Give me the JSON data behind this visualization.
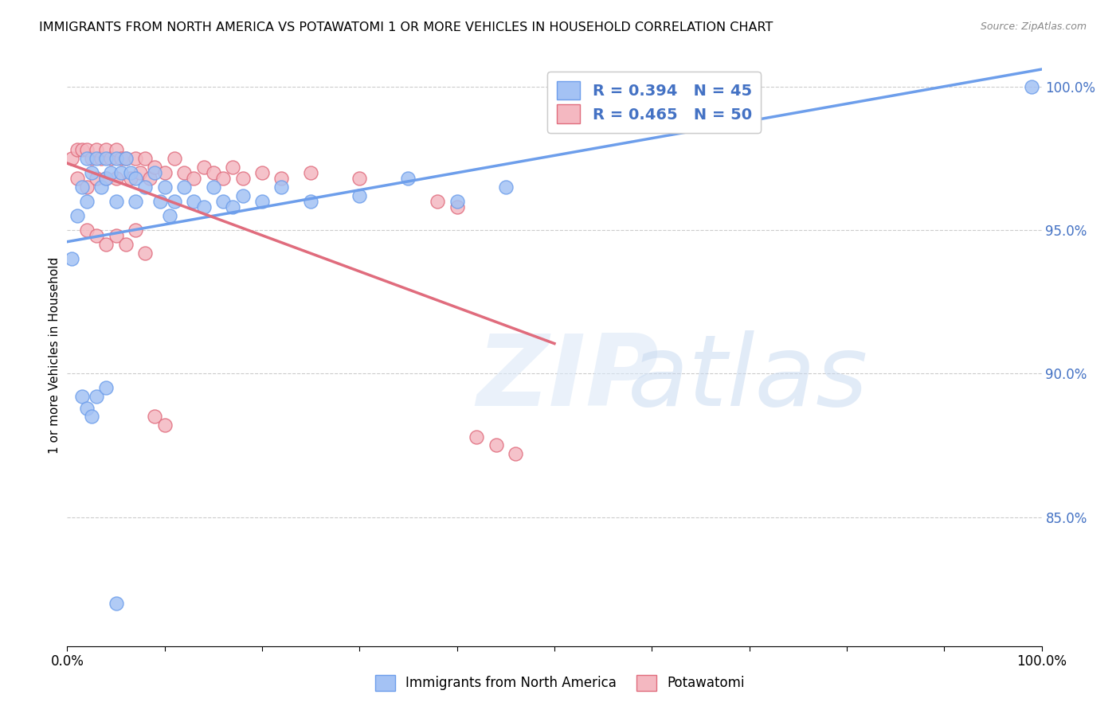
{
  "title": "IMMIGRANTS FROM NORTH AMERICA VS POTAWATOMI 1 OR MORE VEHICLES IN HOUSEHOLD CORRELATION CHART",
  "source": "Source: ZipAtlas.com",
  "ylabel": "1 or more Vehicles in Household",
  "blue_color": "#a4c2f4",
  "pink_color": "#f4b8c1",
  "blue_edge_color": "#6d9eeb",
  "pink_edge_color": "#e06c7d",
  "blue_line_color": "#6d9eeb",
  "pink_line_color": "#e06c7d",
  "legend_text_color": "#4472c4",
  "R_blue": 0.394,
  "N_blue": 45,
  "R_pink": 0.465,
  "N_pink": 50,
  "xlim": [
    0.0,
    1.0
  ],
  "ylim": [
    0.805,
    1.008
  ],
  "yticks": [
    0.85,
    0.9,
    0.95,
    1.0
  ],
  "ytick_labels": [
    "85.0%",
    "90.0%",
    "95.0%",
    "100.0%"
  ],
  "blue_x": [
    0.005,
    0.01,
    0.015,
    0.02,
    0.02,
    0.025,
    0.03,
    0.035,
    0.04,
    0.04,
    0.045,
    0.05,
    0.05,
    0.055,
    0.06,
    0.065,
    0.07,
    0.07,
    0.08,
    0.09,
    0.095,
    0.1,
    0.105,
    0.11,
    0.12,
    0.13,
    0.14,
    0.15,
    0.16,
    0.17,
    0.18,
    0.2,
    0.22,
    0.25,
    0.3,
    0.35,
    0.4,
    0.45,
    0.015,
    0.02,
    0.025,
    0.03,
    0.04,
    0.05,
    0.99
  ],
  "blue_y": [
    0.94,
    0.955,
    0.965,
    0.975,
    0.96,
    0.97,
    0.975,
    0.965,
    0.975,
    0.968,
    0.97,
    0.975,
    0.96,
    0.97,
    0.975,
    0.97,
    0.968,
    0.96,
    0.965,
    0.97,
    0.96,
    0.965,
    0.955,
    0.96,
    0.965,
    0.96,
    0.958,
    0.965,
    0.96,
    0.958,
    0.962,
    0.96,
    0.965,
    0.96,
    0.962,
    0.968,
    0.96,
    0.965,
    0.892,
    0.888,
    0.885,
    0.892,
    0.895,
    0.82,
    1.0
  ],
  "pink_x": [
    0.005,
    0.01,
    0.01,
    0.015,
    0.02,
    0.02,
    0.025,
    0.03,
    0.03,
    0.035,
    0.04,
    0.04,
    0.045,
    0.05,
    0.05,
    0.055,
    0.06,
    0.065,
    0.07,
    0.075,
    0.08,
    0.085,
    0.09,
    0.1,
    0.11,
    0.12,
    0.13,
    0.14,
    0.15,
    0.16,
    0.17,
    0.18,
    0.2,
    0.22,
    0.25,
    0.3,
    0.02,
    0.03,
    0.04,
    0.05,
    0.06,
    0.07,
    0.08,
    0.09,
    0.1,
    0.38,
    0.4,
    0.42,
    0.44,
    0.46
  ],
  "pink_y": [
    0.975,
    0.978,
    0.968,
    0.978,
    0.978,
    0.965,
    0.975,
    0.978,
    0.968,
    0.975,
    0.978,
    0.968,
    0.975,
    0.978,
    0.968,
    0.975,
    0.975,
    0.968,
    0.975,
    0.97,
    0.975,
    0.968,
    0.972,
    0.97,
    0.975,
    0.97,
    0.968,
    0.972,
    0.97,
    0.968,
    0.972,
    0.968,
    0.97,
    0.968,
    0.97,
    0.968,
    0.95,
    0.948,
    0.945,
    0.948,
    0.945,
    0.95,
    0.942,
    0.885,
    0.882,
    0.96,
    0.958,
    0.878,
    0.875,
    0.872
  ]
}
